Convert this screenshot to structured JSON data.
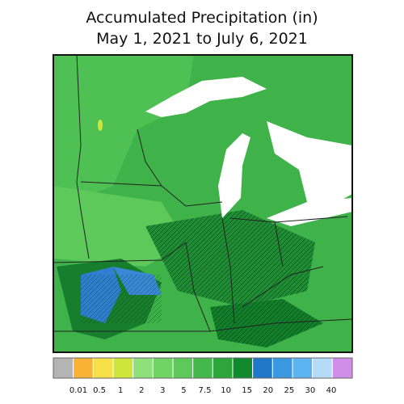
{
  "header": {
    "title_line1": "Accumulated Precipitation (in)",
    "title_line2": "May 1, 2021 to July 6, 2021"
  },
  "legend": {
    "colors": [
      "#b4b4b4",
      "#f9b233",
      "#f6e04a",
      "#cde63a",
      "#8fe07a",
      "#6fd463",
      "#5cc95a",
      "#45b84c",
      "#2ea43d",
      "#0f8a2c",
      "#1f78c8",
      "#3a97e0",
      "#5cb4f0",
      "#b4dcf8",
      "#d08ee8"
    ],
    "labels": [
      "0.01",
      "0.5",
      "1",
      "2",
      "3",
      "5",
      "7.5",
      "10",
      "15",
      "20",
      "25",
      "30",
      "40"
    ]
  }
}
